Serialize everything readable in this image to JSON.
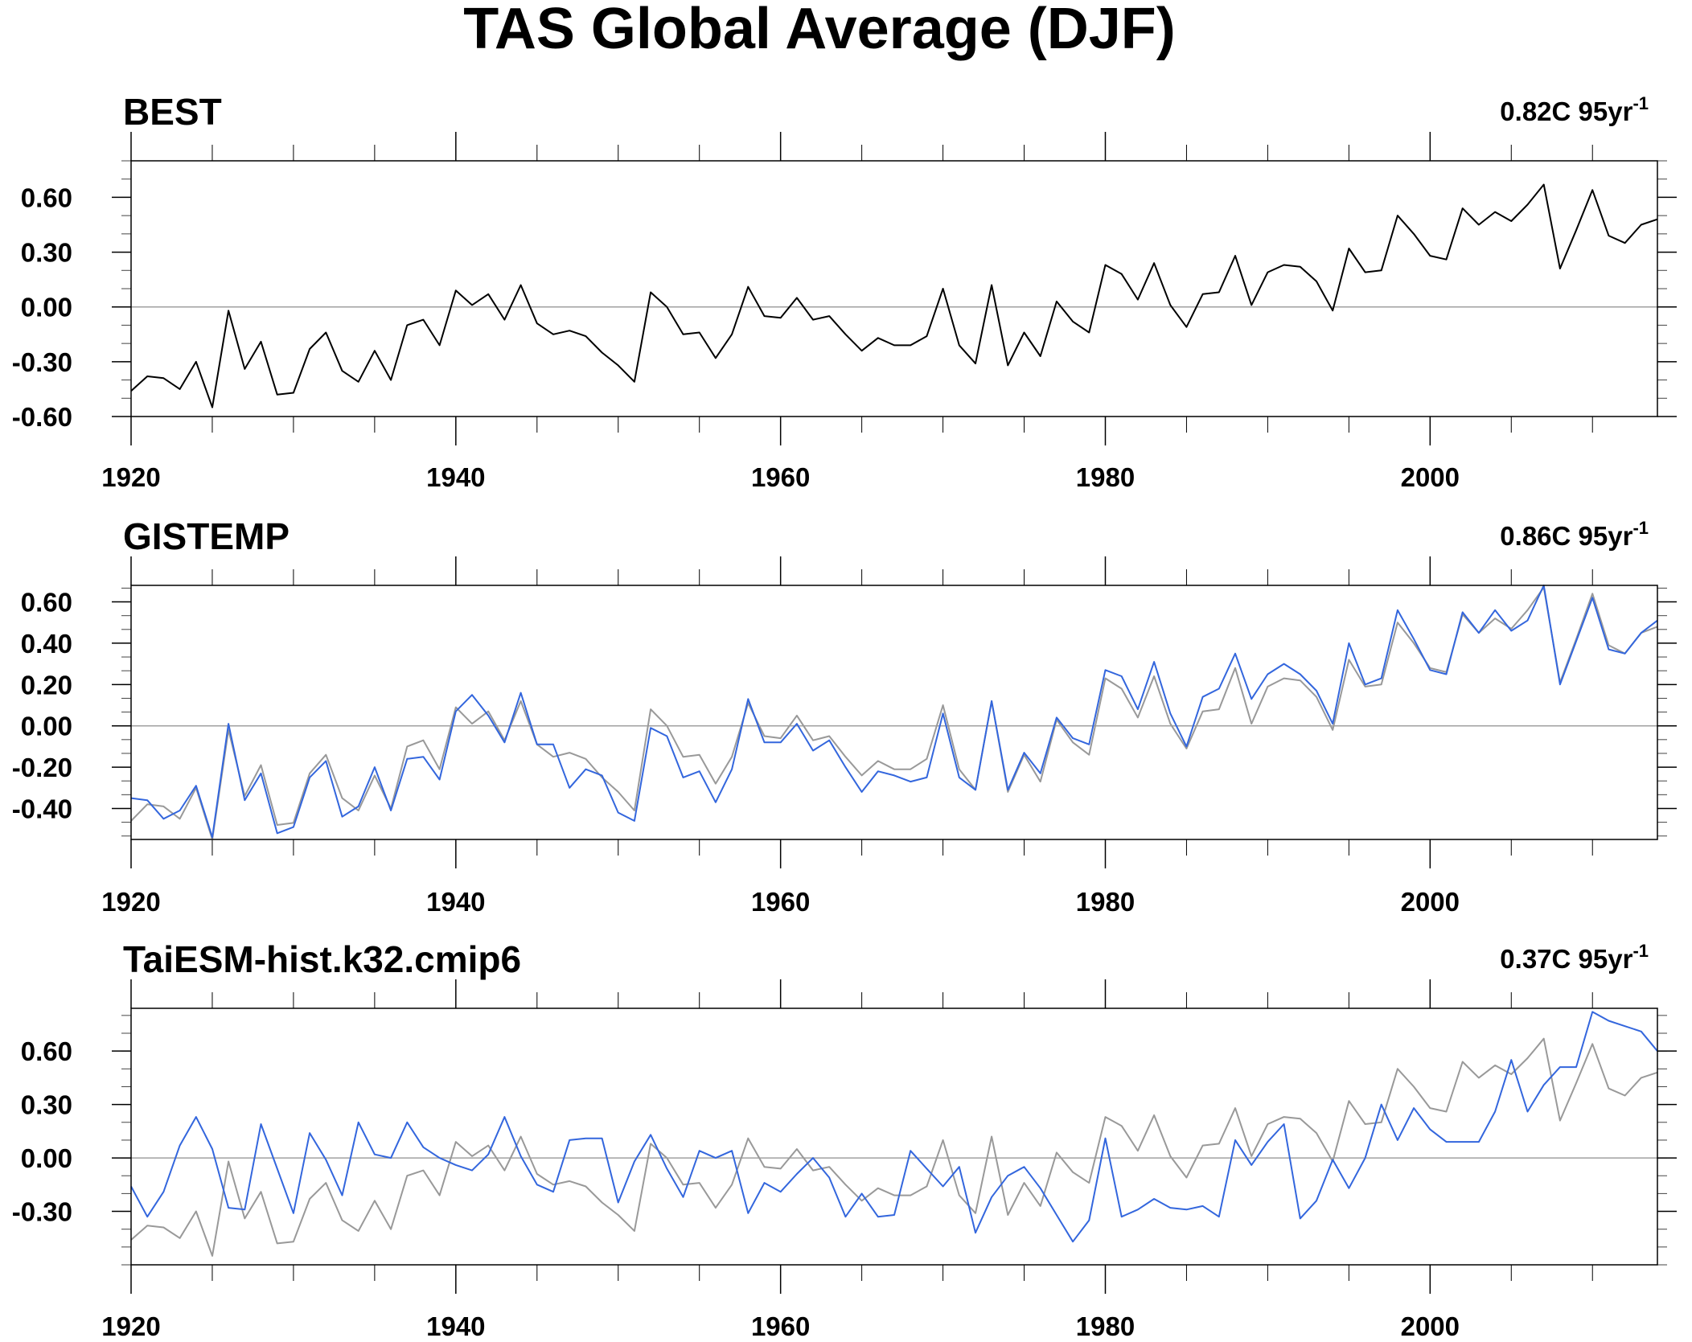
{
  "title": "TAS Global Average (DJF)",
  "colors": {
    "best": "#000000",
    "reference": "#999999",
    "gistemp": "#3366dd",
    "model": "#3366dd",
    "zero_line": "#a0a0a0"
  },
  "chart_data": [
    {
      "type": "line",
      "title": "BEST",
      "trend": "0.82C 95yr",
      "trend_exp": "-1",
      "xlim": [
        1920,
        2014
      ],
      "ylim": [
        -0.6,
        0.8
      ],
      "yticks": [
        -0.6,
        -0.3,
        0.0,
        0.3,
        0.6
      ],
      "yticklabels": [
        "-0.60",
        "-0.30",
        "0.00",
        "0.30",
        "0.60"
      ],
      "xticks": [
        1920,
        1940,
        1960,
        1980,
        2000
      ],
      "xticklabels": [
        "1920",
        "1940",
        "1960",
        "1980",
        "2000"
      ],
      "x_start": 1920,
      "series": [
        {
          "color": "#000000",
          "values": [
            -0.46,
            -0.38,
            -0.39,
            -0.45,
            -0.3,
            -0.55,
            -0.02,
            -0.34,
            -0.19,
            -0.48,
            -0.47,
            -0.23,
            -0.14,
            -0.35,
            -0.41,
            -0.24,
            -0.4,
            -0.1,
            -0.07,
            -0.21,
            0.09,
            0.01,
            0.07,
            -0.07,
            0.12,
            -0.09,
            -0.15,
            -0.13,
            -0.16,
            -0.25,
            -0.32,
            -0.41,
            0.08,
            0.0,
            -0.15,
            -0.14,
            -0.28,
            -0.15,
            0.11,
            -0.05,
            -0.06,
            0.05,
            -0.07,
            -0.05,
            -0.15,
            -0.24,
            -0.17,
            -0.21,
            -0.21,
            -0.16,
            0.1,
            -0.21,
            -0.31,
            0.12,
            -0.32,
            -0.14,
            -0.27,
            0.03,
            -0.08,
            -0.14,
            0.23,
            0.18,
            0.04,
            0.24,
            0.01,
            -0.11,
            0.07,
            0.08,
            0.28,
            0.01,
            0.19,
            0.23,
            0.22,
            0.14,
            -0.02,
            0.32,
            0.19,
            0.2,
            0.5,
            0.4,
            0.28,
            0.26,
            0.54,
            0.45,
            0.52,
            0.47,
            0.56,
            0.67,
            0.21,
            0.42,
            0.64,
            0.39,
            0.35,
            0.45,
            0.48
          ]
        }
      ]
    },
    {
      "type": "line",
      "title": "GISTEMP",
      "trend": "0.86C 95yr",
      "trend_exp": "-1",
      "xlim": [
        1920,
        2014
      ],
      "ylim": [
        -0.55,
        0.68
      ],
      "yticks": [
        -0.4,
        -0.2,
        0.0,
        0.2,
        0.4,
        0.6
      ],
      "yticklabels": [
        "-0.40",
        "-0.20",
        "0.00",
        "0.20",
        "0.40",
        "0.60"
      ],
      "xticks": [
        1920,
        1940,
        1960,
        1980,
        2000
      ],
      "xticklabels": [
        "1920",
        "1940",
        "1960",
        "1980",
        "2000"
      ],
      "x_start": 1920,
      "series": [
        {
          "color": "#999999",
          "values": [
            -0.46,
            -0.38,
            -0.39,
            -0.45,
            -0.3,
            -0.55,
            -0.02,
            -0.34,
            -0.19,
            -0.48,
            -0.47,
            -0.23,
            -0.14,
            -0.35,
            -0.41,
            -0.24,
            -0.4,
            -0.1,
            -0.07,
            -0.21,
            0.09,
            0.01,
            0.07,
            -0.07,
            0.12,
            -0.09,
            -0.15,
            -0.13,
            -0.16,
            -0.25,
            -0.32,
            -0.41,
            0.08,
            0.0,
            -0.15,
            -0.14,
            -0.28,
            -0.15,
            0.11,
            -0.05,
            -0.06,
            0.05,
            -0.07,
            -0.05,
            -0.15,
            -0.24,
            -0.17,
            -0.21,
            -0.21,
            -0.16,
            0.1,
            -0.21,
            -0.31,
            0.12,
            -0.32,
            -0.14,
            -0.27,
            0.03,
            -0.08,
            -0.14,
            0.23,
            0.18,
            0.04,
            0.24,
            0.01,
            -0.11,
            0.07,
            0.08,
            0.28,
            0.01,
            0.19,
            0.23,
            0.22,
            0.14,
            -0.02,
            0.32,
            0.19,
            0.2,
            0.5,
            0.4,
            0.28,
            0.26,
            0.54,
            0.45,
            0.52,
            0.47,
            0.56,
            0.67,
            0.21,
            0.42,
            0.64,
            0.39,
            0.35,
            0.45,
            0.48
          ]
        },
        {
          "color": "#3366dd",
          "values": [
            -0.35,
            -0.36,
            -0.45,
            -0.41,
            -0.29,
            -0.54,
            0.01,
            -0.36,
            -0.23,
            -0.52,
            -0.49,
            -0.25,
            -0.17,
            -0.44,
            -0.39,
            -0.2,
            -0.41,
            -0.16,
            -0.15,
            -0.26,
            0.07,
            0.15,
            0.05,
            -0.08,
            0.16,
            -0.09,
            -0.09,
            -0.3,
            -0.21,
            -0.24,
            -0.42,
            -0.46,
            -0.01,
            -0.05,
            -0.25,
            -0.22,
            -0.37,
            -0.21,
            0.13,
            -0.08,
            -0.08,
            0.01,
            -0.12,
            -0.07,
            -0.2,
            -0.32,
            -0.22,
            -0.24,
            -0.27,
            -0.25,
            0.06,
            -0.25,
            -0.31,
            0.12,
            -0.31,
            -0.13,
            -0.23,
            0.04,
            -0.06,
            -0.09,
            0.27,
            0.24,
            0.08,
            0.31,
            0.06,
            -0.1,
            0.14,
            0.18,
            0.35,
            0.13,
            0.25,
            0.3,
            0.25,
            0.17,
            0.01,
            0.4,
            0.2,
            0.23,
            0.56,
            0.42,
            0.27,
            0.25,
            0.55,
            0.45,
            0.56,
            0.46,
            0.51,
            0.68,
            0.2,
            0.41,
            0.62,
            0.37,
            0.35,
            0.45,
            0.51
          ]
        }
      ]
    },
    {
      "type": "line",
      "title": "TaiESM-hist.k32.cmip6",
      "trend": "0.37C 95yr",
      "trend_exp": "-1",
      "xlim": [
        1920,
        2014
      ],
      "ylim": [
        -0.6,
        0.84
      ],
      "yticks": [
        -0.3,
        0.0,
        0.3,
        0.6
      ],
      "yticklabels": [
        "-0.30",
        "0.00",
        "0.30",
        "0.60"
      ],
      "xticks": [
        1920,
        1940,
        1960,
        1980,
        2000
      ],
      "xticklabels": [
        "1920",
        "1940",
        "1960",
        "1980",
        "2000"
      ],
      "x_start": 1920,
      "series": [
        {
          "color": "#999999",
          "values": [
            -0.46,
            -0.38,
            -0.39,
            -0.45,
            -0.3,
            -0.55,
            -0.02,
            -0.34,
            -0.19,
            -0.48,
            -0.47,
            -0.23,
            -0.14,
            -0.35,
            -0.41,
            -0.24,
            -0.4,
            -0.1,
            -0.07,
            -0.21,
            0.09,
            0.01,
            0.07,
            -0.07,
            0.12,
            -0.09,
            -0.15,
            -0.13,
            -0.16,
            -0.25,
            -0.32,
            -0.41,
            0.08,
            0.0,
            -0.15,
            -0.14,
            -0.28,
            -0.15,
            0.11,
            -0.05,
            -0.06,
            0.05,
            -0.07,
            -0.05,
            -0.15,
            -0.24,
            -0.17,
            -0.21,
            -0.21,
            -0.16,
            0.1,
            -0.21,
            -0.31,
            0.12,
            -0.32,
            -0.14,
            -0.27,
            0.03,
            -0.08,
            -0.14,
            0.23,
            0.18,
            0.04,
            0.24,
            0.01,
            -0.11,
            0.07,
            0.08,
            0.28,
            0.01,
            0.19,
            0.23,
            0.22,
            0.14,
            -0.02,
            0.32,
            0.19,
            0.2,
            0.5,
            0.4,
            0.28,
            0.26,
            0.54,
            0.45,
            0.52,
            0.47,
            0.56,
            0.67,
            0.21,
            0.42,
            0.64,
            0.39,
            0.35,
            0.45,
            0.48
          ]
        },
        {
          "color": "#3366dd",
          "values": [
            -0.16,
            -0.33,
            -0.19,
            0.07,
            0.23,
            0.05,
            -0.28,
            -0.29,
            0.19,
            -0.06,
            -0.31,
            0.14,
            -0.01,
            -0.21,
            0.2,
            0.02,
            0.0,
            0.2,
            0.06,
            0.0,
            -0.04,
            -0.07,
            0.02,
            0.23,
            0.01,
            -0.15,
            -0.19,
            0.1,
            0.11,
            0.11,
            -0.25,
            -0.02,
            0.13,
            -0.06,
            -0.22,
            0.04,
            0.0,
            0.04,
            -0.31,
            -0.14,
            -0.19,
            -0.09,
            0.0,
            -0.11,
            -0.33,
            -0.2,
            -0.33,
            -0.32,
            0.04,
            -0.06,
            -0.16,
            -0.05,
            -0.42,
            -0.22,
            -0.1,
            -0.05,
            -0.17,
            -0.32,
            -0.47,
            -0.35,
            0.11,
            -0.33,
            -0.29,
            -0.23,
            -0.28,
            -0.29,
            -0.27,
            -0.33,
            0.1,
            -0.04,
            0.09,
            0.19,
            -0.34,
            -0.24,
            -0.01,
            -0.17,
            0.0,
            0.3,
            0.1,
            0.28,
            0.16,
            0.09,
            0.09,
            0.09,
            0.26,
            0.55,
            0.26,
            0.41,
            0.51,
            0.51,
            0.82,
            0.77,
            0.74,
            0.71,
            0.6
          ]
        }
      ]
    }
  ]
}
